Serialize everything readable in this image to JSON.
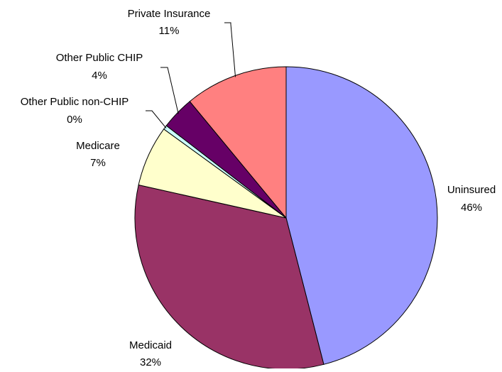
{
  "chart_data": {
    "type": "pie",
    "title": "",
    "slices": [
      {
        "label": "Uninsured",
        "percent_label": "46%",
        "value": 46,
        "color": "#9999FF"
      },
      {
        "label": "Medicaid",
        "percent_label": "32%",
        "value": 32.5,
        "color": "#993366"
      },
      {
        "label": "Medicare",
        "percent_label": "7%",
        "value": 6.5,
        "color": "#FFFFCC"
      },
      {
        "label": "Other Public non-CHIP",
        "percent_label": "0%",
        "value": 0.45,
        "color": "#CCFFFF"
      },
      {
        "label": "Other Public CHIP",
        "percent_label": "4%",
        "value": 3.55,
        "color": "#660066"
      },
      {
        "label": "Private Insurance",
        "percent_label": "11%",
        "value": 11,
        "color": "#FF8080"
      }
    ]
  }
}
